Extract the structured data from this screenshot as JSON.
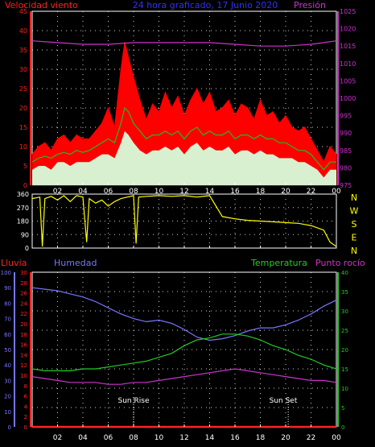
{
  "colors": {
    "background": "#000000",
    "wind_title": "#ff2020",
    "header_title": "#3030ff",
    "pressure": "#cc33cc",
    "gust": "#ff0000",
    "avg_wind": "#22bb22",
    "wind_fill": "#d8f0d0",
    "direction": "#ffff00",
    "rain": "#ff2222",
    "humidity": "#7777ff",
    "temperature": "#22cc22",
    "dew_point": "#cc33cc",
    "axis_text": "#ffffff",
    "frame": "#ffffff",
    "grid": "#ffffff"
  },
  "header": {
    "wind_label": "Velocidad viento",
    "title": "24 hora graficado, 17 Junio 2020",
    "pressure_label": "Presión"
  },
  "lower_labels": {
    "rain": "Lluvia",
    "humidity": "Humedad",
    "temperature": "Temperatura",
    "dew_point": "Punto rocío",
    "sun_rise": "Sun Rise",
    "sun_set": "Sun Set"
  },
  "x_ticks": [
    "02",
    "04",
    "06",
    "08",
    "10",
    "12",
    "14",
    "16",
    "18",
    "20",
    "22",
    "00"
  ],
  "wind_axis_ticks": [
    "0",
    "5",
    "10",
    "15",
    "20",
    "25",
    "30",
    "35",
    "40",
    "45"
  ],
  "pressure_axis_ticks": [
    "975",
    "980",
    "985",
    "990",
    "995",
    "1000",
    "1005",
    "1010",
    "1015",
    "1020",
    "1025"
  ],
  "dir_axis_ticks": [
    "0",
    "90",
    "180",
    "270",
    "360"
  ],
  "dir_letters": [
    "N",
    "W",
    "S",
    "E",
    "N"
  ],
  "humidity_axis_ticks": [
    "0",
    "10",
    "20",
    "30",
    "40",
    "50",
    "60",
    "70",
    "80",
    "90",
    "100"
  ],
  "rain_axis_ticks": [
    "0",
    "2",
    "4",
    "6",
    "8",
    "10",
    "12",
    "14",
    "16",
    "18",
    "20",
    "22",
    "24",
    "26",
    "28",
    "30"
  ],
  "temp_axis_ticks": [
    "0",
    "5",
    "10",
    "15",
    "20",
    "25",
    "30",
    "35",
    "40"
  ],
  "chart_data": [
    {
      "type": "line",
      "title": "24 hora graficado, 17 Junio 2020",
      "x_unit": "hour",
      "xlim": [
        0,
        24
      ],
      "ylabel": "Velocidad viento",
      "ylim": [
        0,
        45
      ],
      "y2label": "Presión",
      "y2lim": [
        975,
        1025
      ],
      "grid": true,
      "series": [
        {
          "name": "gust",
          "style": "red filled area",
          "x": [
            0,
            0.5,
            1,
            1.5,
            2,
            2.5,
            3,
            3.5,
            4,
            4.5,
            5,
            5.5,
            6,
            6.5,
            7,
            7.3,
            7.6,
            8,
            8.5,
            9,
            9.5,
            10,
            10.5,
            11,
            11.5,
            12,
            12.5,
            13,
            13.5,
            14,
            14.5,
            15,
            15.5,
            16,
            16.5,
            17,
            17.5,
            18,
            18.5,
            19,
            19.5,
            20,
            20.5,
            21,
            21.5,
            22,
            22.5,
            23,
            23.5,
            24
          ],
          "values": [
            8,
            10,
            11,
            9,
            12,
            13,
            11,
            13,
            12,
            12,
            14,
            16,
            20,
            15,
            30,
            37,
            33,
            28,
            22,
            17,
            21,
            19,
            24,
            20,
            23,
            18,
            22,
            25,
            21,
            24,
            19,
            20,
            22,
            18,
            21,
            20,
            17,
            22,
            18,
            19,
            16,
            18,
            15,
            14,
            15,
            12,
            9,
            6,
            10,
            8
          ]
        },
        {
          "name": "average",
          "style": "green line",
          "x": [
            0,
            0.5,
            1,
            1.5,
            2,
            2.5,
            3,
            3.5,
            4,
            4.5,
            5,
            5.5,
            6,
            6.5,
            7,
            7.3,
            7.6,
            8,
            8.5,
            9,
            9.5,
            10,
            10.5,
            11,
            11.5,
            12,
            12.5,
            13,
            13.5,
            14,
            14.5,
            15,
            15.5,
            16,
            16.5,
            17,
            17.5,
            18,
            18.5,
            19,
            19.5,
            20,
            20.5,
            21,
            21.5,
            22,
            22.5,
            23,
            23.5,
            24
          ],
          "values": [
            6,
            7,
            7.5,
            7,
            8,
            8.5,
            8,
            9,
            8.5,
            9,
            10,
            11,
            12,
            11,
            16,
            20,
            19,
            16,
            14,
            12,
            13,
            13,
            14,
            13,
            14,
            12,
            14,
            15,
            13,
            14,
            13,
            13,
            14,
            12,
            13,
            13,
            12,
            13,
            12,
            12,
            11,
            11,
            10,
            9,
            9,
            8,
            6,
            4,
            6,
            6
          ]
        },
        {
          "name": "wind",
          "style": "light fill",
          "x": [
            0,
            0.5,
            1,
            1.5,
            2,
            2.5,
            3,
            3.5,
            4,
            4.5,
            5,
            5.5,
            6,
            6.5,
            7,
            7.3,
            7.6,
            8,
            8.5,
            9,
            9.5,
            10,
            10.5,
            11,
            11.5,
            12,
            12.5,
            13,
            13.5,
            14,
            14.5,
            15,
            15.5,
            16,
            16.5,
            17,
            17.5,
            18,
            18.5,
            19,
            19.5,
            20,
            20.5,
            21,
            21.5,
            22,
            22.5,
            23,
            23.5,
            24
          ],
          "values": [
            4,
            5,
            5,
            4,
            6,
            6,
            5,
            6,
            6,
            6,
            7,
            8,
            8,
            7,
            11,
            14,
            13,
            11,
            9,
            8,
            9,
            9,
            10,
            9,
            10,
            8,
            10,
            11,
            9,
            10,
            9,
            9,
            10,
            8,
            9,
            9,
            8,
            9,
            8,
            8,
            7,
            7,
            7,
            6,
            6,
            5,
            4,
            2,
            4,
            4
          ]
        },
        {
          "name": "pressure",
          "axis": "right",
          "style": "magenta line",
          "x": [
            0,
            2,
            4,
            6,
            8,
            10,
            12,
            14,
            16,
            18,
            20,
            22,
            23,
            24
          ],
          "values": [
            1016.5,
            1016,
            1015.5,
            1015.5,
            1016,
            1016,
            1016,
            1016,
            1015.5,
            1015,
            1015,
            1015.5,
            1016,
            1016.5
          ]
        }
      ]
    },
    {
      "type": "line",
      "x_unit": "hour",
      "xlim": [
        0,
        24
      ],
      "ylim": [
        0,
        360
      ],
      "series": [
        {
          "name": "direction",
          "style": "yellow line",
          "x": [
            0,
            0.6,
            0.8,
            1,
            1.5,
            2,
            2.5,
            3,
            3.5,
            4,
            4.3,
            4.5,
            5,
            5.5,
            6,
            6.5,
            7,
            7.5,
            8,
            8.2,
            8.4,
            9,
            10,
            11,
            12,
            13,
            14,
            14.5,
            15,
            16,
            17,
            18,
            19,
            20,
            21,
            22,
            23,
            23.5,
            24
          ],
          "values": [
            330,
            340,
            10,
            330,
            345,
            320,
            350,
            310,
            350,
            340,
            40,
            330,
            300,
            320,
            280,
            310,
            330,
            340,
            350,
            30,
            340,
            345,
            350,
            345,
            350,
            340,
            350,
            280,
            210,
            195,
            185,
            180,
            175,
            170,
            165,
            150,
            120,
            40,
            10
          ]
        }
      ]
    },
    {
      "type": "line",
      "x_unit": "hour",
      "xlim": [
        0,
        24
      ],
      "ylim": [
        0,
        100
      ],
      "y2lim": [
        0,
        40
      ],
      "grid": true,
      "series": [
        {
          "name": "Humedad",
          "axis": "left",
          "unit": "%",
          "x": [
            0,
            1,
            2,
            3,
            4,
            5,
            6,
            7,
            8,
            9,
            10,
            11,
            12,
            13,
            14,
            15,
            16,
            17,
            18,
            19,
            20,
            21,
            22,
            23,
            24
          ],
          "values": [
            90,
            89,
            88,
            86,
            84,
            81,
            77,
            73,
            70,
            68,
            69,
            67,
            63,
            58,
            56,
            57,
            59,
            62,
            64,
            64,
            66,
            69,
            73,
            78,
            82
          ]
        },
        {
          "name": "Temperatura",
          "axis": "right",
          "unit": "°C",
          "x": [
            0,
            1,
            2,
            3,
            4,
            5,
            6,
            7,
            8,
            9,
            10,
            11,
            12,
            13,
            14,
            15,
            16,
            17,
            18,
            19,
            20,
            21,
            22,
            23,
            24
          ],
          "values": [
            15,
            14.5,
            14.5,
            14.5,
            15,
            15,
            15.5,
            16,
            16.5,
            17,
            18,
            19,
            21,
            22.5,
            23,
            24,
            24,
            23.5,
            22.5,
            21,
            20,
            18.5,
            17.5,
            16,
            15
          ]
        },
        {
          "name": "Punto rocío",
          "axis": "right",
          "unit": "°C",
          "x": [
            0,
            1,
            2,
            3,
            4,
            5,
            6,
            7,
            8,
            9,
            10,
            11,
            12,
            13,
            14,
            15,
            16,
            17,
            18,
            19,
            20,
            21,
            22,
            23,
            24
          ],
          "values": [
            13,
            12.5,
            12,
            11.5,
            11.5,
            11.5,
            11,
            11,
            11.5,
            11.5,
            12,
            12.5,
            13,
            13.5,
            14,
            14.5,
            15,
            14.5,
            14,
            13.5,
            13,
            12.5,
            12,
            12,
            11.5
          ]
        },
        {
          "name": "Lluvia",
          "axis": "rain",
          "x": [
            0,
            24
          ],
          "values": [
            0,
            0
          ]
        }
      ],
      "annotations": [
        {
          "label": "Sun Rise",
          "x": 8.0
        },
        {
          "label": "Sun Set",
          "x": 20.2
        }
      ]
    }
  ]
}
